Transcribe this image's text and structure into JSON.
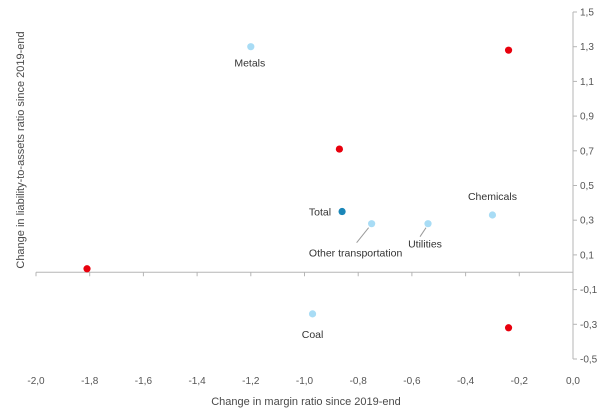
{
  "chart_data": {
    "type": "scatter",
    "title": "",
    "xlabel": "Change in margin ratio since 2019-end",
    "ylabel": "Change in liability-to-assets ratio since 2019-end",
    "xlim": [
      -2.0,
      0.0
    ],
    "ylim": [
      -0.5,
      1.5
    ],
    "x_ticks": [
      -2.0,
      -1.8,
      -1.6,
      -1.4,
      -1.2,
      -1.0,
      -0.8,
      -0.6,
      -0.4,
      -0.2,
      0.0
    ],
    "x_tick_labels": [
      "-2,0",
      "-1,8",
      "-1,6",
      "-1,4",
      "-1,2",
      "-1,0",
      "-0,8",
      "-0,6",
      "-0,4",
      "-0,2",
      "0,0"
    ],
    "y_ticks": [
      1.5,
      1.3,
      1.1,
      0.9,
      0.7,
      0.5,
      0.3,
      0.1,
      -0.1,
      -0.3,
      -0.5
    ],
    "y_tick_labels": [
      "1,5",
      "1,3",
      "1,1",
      "0,9",
      "0,7",
      "0,5",
      "0,3",
      "0,1",
      "-0,1",
      "-0,3",
      "-0,5"
    ],
    "grid": false,
    "colors": {
      "light_blue": "#a8dcf5",
      "dark_blue": "#1a86b8",
      "red": "#e8000d",
      "axis": "#b5b5b5"
    },
    "points": [
      {
        "x": -1.2,
        "y": 1.3,
        "label": "Metals",
        "color": "light_blue"
      },
      {
        "x": -0.24,
        "y": 1.28,
        "label": "",
        "color": "red"
      },
      {
        "x": -0.87,
        "y": 0.71,
        "label": "",
        "color": "red"
      },
      {
        "x": -0.3,
        "y": 0.33,
        "label": "Chemicals",
        "color": "light_blue"
      },
      {
        "x": -0.54,
        "y": 0.28,
        "label": "Utilities",
        "color": "light_blue"
      },
      {
        "x": -0.75,
        "y": 0.28,
        "label": "Other transportation",
        "color": "light_blue"
      },
      {
        "x": -0.86,
        "y": 0.35,
        "label": "Total",
        "color": "dark_blue"
      },
      {
        "x": -1.81,
        "y": 0.02,
        "label": "",
        "color": "red"
      },
      {
        "x": -0.97,
        "y": -0.24,
        "label": "Coal",
        "color": "light_blue"
      },
      {
        "x": -0.24,
        "y": -0.32,
        "label": "",
        "color": "red"
      }
    ]
  }
}
